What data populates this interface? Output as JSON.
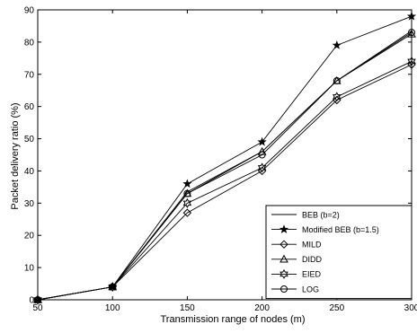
{
  "chart_data": {
    "type": "line",
    "title": "",
    "xlabel": "Transmission range of nodes (m)",
    "ylabel": "Packet delivery ratio (%)",
    "xlim": [
      50,
      300
    ],
    "ylim": [
      0,
      90
    ],
    "x": [
      50,
      100,
      150,
      200,
      250,
      300
    ],
    "x_ticks": [
      50,
      100,
      150,
      200,
      250,
      300
    ],
    "y_ticks": [
      0,
      10,
      20,
      30,
      40,
      50,
      60,
      70,
      80,
      90
    ],
    "grid": false,
    "legend_position": "bottom-right",
    "series": [
      {
        "name": "BEB (b=2)",
        "marker": "none",
        "values": [
          0,
          4,
          33.5,
          46,
          68,
          83.5
        ]
      },
      {
        "name": "Modified BEB (b=1.5)",
        "marker": "star",
        "values": [
          0,
          4,
          36,
          49,
          79,
          88
        ]
      },
      {
        "name": "MILD",
        "marker": "diamond",
        "values": [
          0,
          4,
          27,
          40,
          62,
          73
        ]
      },
      {
        "name": "DIDD",
        "marker": "triangle",
        "values": [
          0,
          4,
          33,
          46,
          68,
          82.5
        ]
      },
      {
        "name": "EIED",
        "marker": "hexagram",
        "values": [
          0,
          4,
          30,
          41,
          63,
          74
        ]
      },
      {
        "name": "LOG",
        "marker": "circle",
        "values": [
          0,
          4,
          33,
          45,
          68,
          83
        ]
      }
    ],
    "colors": {
      "line": "#000000",
      "axes": "#000000",
      "background": "#ffffff"
    }
  }
}
